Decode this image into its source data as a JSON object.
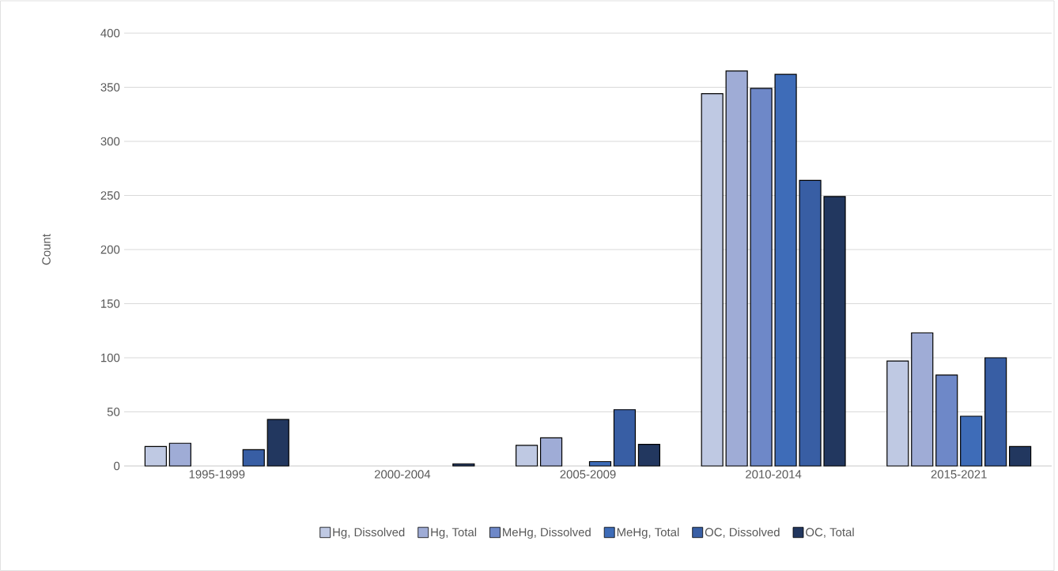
{
  "chart_data": {
    "type": "bar",
    "ylabel": "Count",
    "categories": [
      "1995-1999",
      "2000-2004",
      "2005-2009",
      "2010-2014",
      "2015-2021"
    ],
    "series": [
      {
        "name": "Hg, Dissolved",
        "color": "#bfc9e3",
        "values": [
          18,
          null,
          19,
          344,
          97
        ]
      },
      {
        "name": "Hg, Total",
        "color": "#9facd6",
        "values": [
          21,
          null,
          26,
          365,
          123
        ]
      },
      {
        "name": "MeHg, Dissolved",
        "color": "#6e88c8",
        "values": [
          null,
          null,
          null,
          349,
          84
        ]
      },
      {
        "name": "MeHg, Total",
        "color": "#3e6cb8",
        "values": [
          null,
          null,
          4,
          362,
          46
        ]
      },
      {
        "name": "OC, Dissolved",
        "color": "#385ea4",
        "values": [
          15,
          null,
          52,
          264,
          100
        ]
      },
      {
        "name": "OC, Total",
        "color": "#22375f",
        "values": [
          43,
          2,
          20,
          249,
          18
        ]
      }
    ],
    "ylim": [
      0,
      400
    ],
    "yticks": [
      0,
      50,
      100,
      150,
      200,
      250,
      300,
      350,
      400
    ],
    "grid": "y",
    "legend": "bottom"
  }
}
